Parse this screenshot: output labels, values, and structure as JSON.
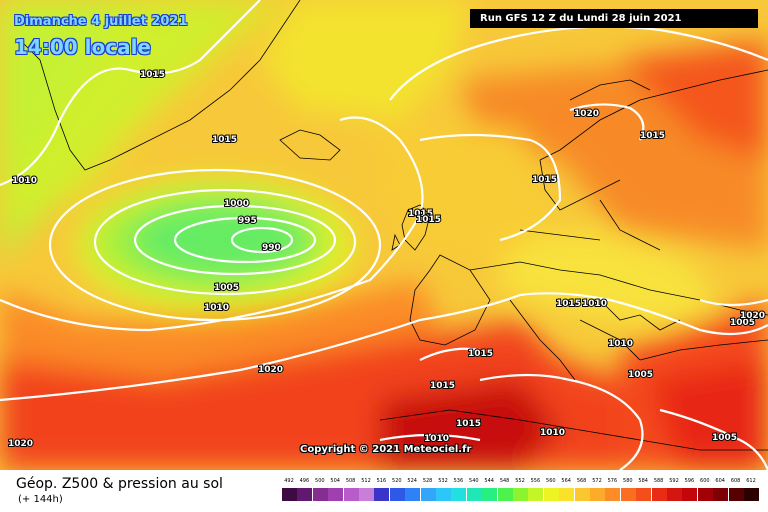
{
  "header": {
    "date": "Dimanche 4 juillet 2021",
    "time": "14:00 locale",
    "run": "Run GFS 12 Z du Lundi 28 juin 2021"
  },
  "copyright": "Copyright © 2021 Meteociel.fr",
  "footer": {
    "title": "Géop. Z500 & pression au sol",
    "lead": "(+ 144h)"
  },
  "isobars": [
    {
      "text": "1015"
    },
    {
      "text": "1015"
    },
    {
      "text": "1010"
    },
    {
      "text": "1000"
    },
    {
      "text": "995"
    },
    {
      "text": "990"
    },
    {
      "text": "1005"
    },
    {
      "text": "1010"
    },
    {
      "text": "1020"
    },
    {
      "text": "1020"
    },
    {
      "text": "1015"
    },
    {
      "text": "1020"
    },
    {
      "text": "1015"
    },
    {
      "text": "1015"
    },
    {
      "text": "1015"
    },
    {
      "text": "1015"
    },
    {
      "text": "1010"
    },
    {
      "text": "1010"
    },
    {
      "text": "1015"
    },
    {
      "text": "1015"
    },
    {
      "text": "1015"
    },
    {
      "text": "1010"
    },
    {
      "text": "1010"
    },
    {
      "text": "1005"
    },
    {
      "text": "1005"
    },
    {
      "text": "1005"
    },
    {
      "text": "1020"
    }
  ],
  "scale": {
    "labels": [
      "492",
      "496",
      "500",
      "504",
      "508",
      "512",
      "516",
      "520",
      "524",
      "528",
      "532",
      "536",
      "540",
      "544",
      "548",
      "552",
      "556",
      "560",
      "564",
      "568",
      "572",
      "576",
      "580",
      "584",
      "588",
      "592",
      "596",
      "600",
      "604",
      "608",
      "612"
    ],
    "colors": [
      "#3d0a44",
      "#61186e",
      "#862d92",
      "#a040b0",
      "#b85ccc",
      "#c87fd8",
      "#3a34c8",
      "#2e58e6",
      "#2f82f5",
      "#33a5fb",
      "#2dc6f8",
      "#22dfe0",
      "#1ee8b5",
      "#27ef82",
      "#4ef24d",
      "#8cf42f",
      "#c4f526",
      "#eef323",
      "#fbe22a",
      "#fcc62e",
      "#fdab2b",
      "#fc8d26",
      "#f96e21",
      "#f44e1b",
      "#e82d14",
      "#d5150f",
      "#c2060b",
      "#a10006",
      "#7e0004",
      "#560002",
      "#2a0000"
    ]
  }
}
